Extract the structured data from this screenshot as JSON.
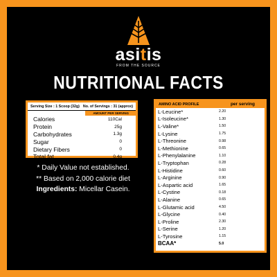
{
  "brand": {
    "logo_icon": "leaf-triangle-icon",
    "name_part1": "asi",
    "name_accent": "t",
    "name_part2": "is",
    "tagline": "FROM THE SOURCE"
  },
  "title": "NUTRITIONAL FACTS",
  "nutrition_table": {
    "serving_size": "Serving Size : 1 Scoop (32g)",
    "servings": "No. of Servings : 31 (approx)",
    "amount_header": "AMOUNT PER SERVING",
    "rows": [
      {
        "label": "Calories",
        "value": "110Cal"
      },
      {
        "label": "Protein",
        "value": "25g"
      },
      {
        "label": "Carbohydrates",
        "value": "1.3g"
      },
      {
        "label": "Sugar",
        "value": "0"
      },
      {
        "label": "Dietary Fibers",
        "value": "0"
      },
      {
        "label": "Total fat",
        "value": "0.4g"
      }
    ]
  },
  "notes": {
    "line1": "* Daily Value not established.",
    "line2": "** Based on 2,000 calorie diet",
    "ingredients_label": "Ingredients:",
    "ingredients_value": " Micellar Casein."
  },
  "amino_table": {
    "header_label": "AMINO ACID PROFILE",
    "header_value": "per serving",
    "rows": [
      {
        "name": "L-Leucine*",
        "value": "2.20"
      },
      {
        "name": "L-Isoleucine*",
        "value": "1.30"
      },
      {
        "name": "L-Valine*",
        "value": "1.50"
      },
      {
        "name": "L-Lysine",
        "value": "1.75"
      },
      {
        "name": "L-Threonine",
        "value": "0.98"
      },
      {
        "name": "L-Methionine",
        "value": "0.65"
      },
      {
        "name": "L-Phenylalanine",
        "value": "1.10"
      },
      {
        "name": "L-Tryptophan",
        "value": "0.28"
      },
      {
        "name": "L-Histidine",
        "value": "0.60"
      },
      {
        "name": "L-Arginine",
        "value": "0.90"
      },
      {
        "name": "L-Aspartic acid",
        "value": "1.65"
      },
      {
        "name": "L-Cystine",
        "value": "0.18"
      },
      {
        "name": "L-Alanine",
        "value": "0.65"
      },
      {
        "name": "L-Glutamic acid",
        "value": "4.50"
      },
      {
        "name": "L-Glycine",
        "value": "0.40"
      },
      {
        "name": "L-Proline",
        "value": "2.30"
      },
      {
        "name": "L-Serine",
        "value": "1.20"
      },
      {
        "name": "L-Tyrosine",
        "value": "1.15"
      }
    ],
    "total": {
      "name": "BCAA*",
      "value": "5.0"
    }
  },
  "colors": {
    "accent": "#f7941d",
    "background": "#000000",
    "table_bg": "#ffffff"
  }
}
